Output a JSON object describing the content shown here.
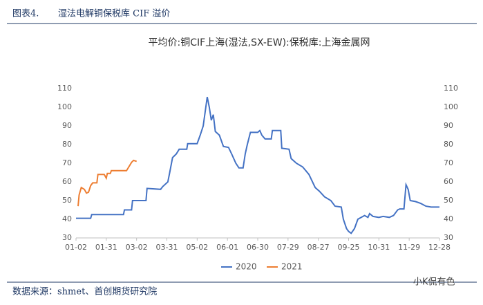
{
  "figure_label": "图表4.",
  "caption": "湿法电解铜保税库 CIF 溢价",
  "source": "数据来源：shmet、首创期货研究院",
  "watermark": "小K侃有色",
  "chart_data": {
    "type": "line",
    "title": "平均价:铜CIF上海(湿法,SX-EW):保税库:上海金属网",
    "xticks": [
      "01-02",
      "01-31",
      "03-02",
      "03-31",
      "05-02",
      "06-01",
      "06-30",
      "07-29",
      "08-27",
      "09-25",
      "10-31",
      "11-29",
      "12-28"
    ],
    "ylim": [
      30,
      110
    ],
    "yticks": [
      30,
      40,
      50,
      60,
      70,
      80,
      90,
      100,
      110
    ],
    "y2lim": [
      30,
      110
    ],
    "y2ticks": [
      30,
      40,
      50,
      60,
      70,
      80,
      90,
      100,
      110
    ],
    "legend": "bottom",
    "series": [
      {
        "name": "2020",
        "color": "#4472c4",
        "x": [
          "01-02",
          "01-16",
          "01-17",
          "02-17",
          "02-18",
          "02-25",
          "02-26",
          "03-11",
          "03-12",
          "03-25",
          "03-27",
          "04-01",
          "04-03",
          "04-06",
          "04-10",
          "04-13",
          "04-21",
          "04-22",
          "05-02",
          "05-05",
          "05-08",
          "05-12",
          "05-14",
          "05-16",
          "05-18",
          "05-20",
          "05-24",
          "05-28",
          "06-02",
          "06-05",
          "06-09",
          "06-12",
          "06-16",
          "06-18",
          "06-20",
          "06-23",
          "06-30",
          "07-02",
          "07-04",
          "07-07",
          "07-13",
          "07-14",
          "07-22",
          "07-23",
          "07-30",
          "08-01",
          "08-06",
          "08-12",
          "08-18",
          "08-24",
          "08-28",
          "09-02",
          "09-08",
          "09-12",
          "09-18",
          "09-20",
          "09-23",
          "09-25",
          "09-28",
          "10-02",
          "10-06",
          "10-10",
          "10-14",
          "10-18",
          "10-20",
          "10-24",
          "10-31",
          "11-04",
          "11-10",
          "11-14",
          "11-18",
          "11-20",
          "11-24",
          "11-26",
          "11-28",
          "11-30",
          "12-05",
          "12-10",
          "12-15",
          "12-20",
          "12-28"
        ],
        "values": [
          40.5,
          40.5,
          42.5,
          42.5,
          45,
          45,
          50,
          50,
          56.5,
          56,
          57.5,
          60,
          65,
          73,
          75,
          77.5,
          77.5,
          80.5,
          80.5,
          85,
          90,
          105.5,
          100,
          93,
          96,
          87,
          85,
          79,
          78.5,
          75,
          70,
          67.5,
          67.5,
          75,
          80,
          86.5,
          86.5,
          87.5,
          85,
          83,
          83,
          87.5,
          87.5,
          78,
          77.5,
          72.5,
          70,
          68,
          64,
          57,
          55,
          52,
          50,
          47,
          46.5,
          40,
          35,
          33.5,
          32.5,
          35,
          40,
          41,
          42,
          41,
          43,
          41.5,
          41,
          41.5,
          41,
          42,
          45,
          45.5,
          45.5,
          58.5,
          56,
          50,
          49.5,
          48.5,
          47,
          46.5,
          46.5
        ]
      },
      {
        "name": "2021",
        "color": "#ed7d31",
        "x": [
          "01-04",
          "01-05",
          "01-07",
          "01-10",
          "01-12",
          "01-14",
          "01-16",
          "01-18",
          "01-22",
          "01-23",
          "01-29",
          "01-31",
          "02-01",
          "02-04",
          "02-05",
          "02-20",
          "02-25",
          "02-27",
          "03-02"
        ],
        "values": [
          47,
          53,
          57,
          56,
          54,
          54.5,
          58,
          59.5,
          59.5,
          64,
          64,
          62,
          64.5,
          64.5,
          66,
          66,
          70.5,
          71.5,
          71
        ]
      }
    ]
  }
}
